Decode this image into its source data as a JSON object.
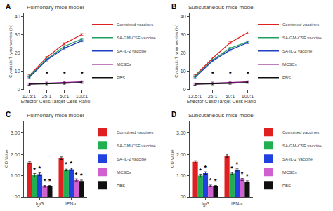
{
  "chart_data": [
    {
      "type": "line",
      "title": "Pulmonary mice model",
      "xlabel": "Effector Cells/Target Cells Ratio",
      "ylabel": "Cytotoxic T lymphocytes (%)",
      "categories": [
        "12.5:1",
        "25:1",
        "50:1",
        "100:1"
      ],
      "ylim": [
        0,
        42
      ],
      "yticks": [
        0,
        10,
        20,
        30,
        40
      ],
      "grid": false,
      "legend": "right",
      "series": [
        {
          "name": "Combined vaccines",
          "color": "#e02020",
          "values": [
            7.5,
            17.5,
            25.0,
            30.0
          ],
          "yerr": [
            0.5,
            0.5,
            0.5,
            0.5
          ]
        },
        {
          "name": "SA-GM-CSF vaccine",
          "color": "#20a060",
          "values": [
            7.0,
            16.5,
            23.5,
            27.5
          ],
          "yerr": [
            0.5,
            0.5,
            0.5,
            0.5
          ]
        },
        {
          "name": "SA-IL-2 vaccine",
          "color": "#2040c0",
          "values": [
            6.5,
            16.0,
            22.5,
            26.5
          ],
          "yerr": [
            0.5,
            0.5,
            0.5,
            0.5
          ]
        },
        {
          "name": "MCSCs",
          "color": "#800080",
          "values": [
            3.0,
            3.5,
            3.8,
            4.2
          ],
          "yerr": [
            0.5,
            0.5,
            0.5,
            0.5
          ]
        },
        {
          "name": "PBS",
          "color": "#101010",
          "values": [
            2.8,
            3.0,
            3.3,
            3.8
          ],
          "yerr": [
            0.5,
            0.5,
            0.5,
            0.5
          ]
        }
      ],
      "annotations": [
        {
          "text": "A"
        },
        {
          "text": "*",
          "x": "25:1",
          "y": 6.0
        },
        {
          "text": "*",
          "x": "50:1",
          "y": 6.0
        },
        {
          "text": "*",
          "x": "100:1",
          "y": 6.0
        }
      ]
    },
    {
      "type": "line",
      "title": "Subcutaneous mice model",
      "xlabel": "Effector Cells/Target Cells Ratio",
      "ylabel": "Cytotoxic T lymphocytes (%)",
      "categories": [
        "12.5:1",
        "25:1",
        "50:1",
        "100:1"
      ],
      "ylim": [
        0,
        42
      ],
      "yticks": [
        0,
        10,
        20,
        30,
        40
      ],
      "grid": false,
      "legend": "right",
      "series": [
        {
          "name": "Combined vaccines",
          "color": "#e02020",
          "values": [
            7.5,
            17.0,
            25.5,
            31.0
          ],
          "yerr": [
            0.5,
            0.5,
            0.5,
            0.5
          ]
        },
        {
          "name": "SA-GM-CSF vaccine",
          "color": "#20a060",
          "values": [
            7.0,
            16.0,
            22.5,
            26.0
          ],
          "yerr": [
            0.5,
            0.5,
            0.5,
            0.5
          ]
        },
        {
          "name": "SA-IL-2 vaccine",
          "color": "#2040c0",
          "values": [
            6.5,
            15.5,
            21.5,
            25.5
          ],
          "yerr": [
            0.5,
            0.5,
            0.5,
            0.5
          ]
        },
        {
          "name": "MCSCs",
          "color": "#800080",
          "values": [
            3.0,
            3.5,
            3.8,
            4.2
          ],
          "yerr": [
            0.5,
            0.5,
            0.5,
            0.5
          ]
        },
        {
          "name": "PBS",
          "color": "#101010",
          "values": [
            2.8,
            3.0,
            3.3,
            3.8
          ],
          "yerr": [
            0.5,
            0.5,
            0.5,
            0.5
          ]
        }
      ],
      "annotations": [
        {
          "text": "B"
        },
        {
          "text": "*",
          "x": "25:1",
          "y": 6.0
        },
        {
          "text": "*",
          "x": "50:1",
          "y": 6.0
        },
        {
          "text": "*",
          "x": "100:1",
          "y": 6.0
        }
      ]
    },
    {
      "type": "bar",
      "title": "Pulmonary mice model",
      "ylabel": "OD Value",
      "categories": [
        "IgG",
        "IFN-c"
      ],
      "ylim": [
        0,
        3.6
      ],
      "yticks": [
        {
          "value": 0,
          "label": ".00"
        },
        {
          "value": 1,
          "label": "1.00"
        },
        {
          "value": 2,
          "label": "2.00"
        },
        {
          "value": 3,
          "label": "3.00"
        }
      ],
      "grid": false,
      "legend": "right",
      "series": [
        {
          "name": "Combined vaccines",
          "color": "#e02020",
          "values": [
            1.62,
            1.82
          ],
          "yerr": [
            0.05,
            0.06
          ]
        },
        {
          "name": "SA-GM-CSF vaccine",
          "color": "#20b050",
          "values": [
            1.02,
            1.27
          ],
          "yerr": [
            0.08,
            0.04
          ]
        },
        {
          "name": "SA-IL-2 vaccine",
          "color": "#2040e0",
          "values": [
            1.07,
            1.3
          ],
          "yerr": [
            0.06,
            0.05
          ]
        },
        {
          "name": "MCSCs",
          "color": "#d060d0",
          "values": [
            0.5,
            0.8
          ],
          "yerr": [
            0.04,
            0.05
          ]
        },
        {
          "name": "PBS",
          "color": "#101010",
          "values": [
            0.5,
            0.75
          ],
          "yerr": [
            0.04,
            0.04
          ]
        }
      ],
      "annotations": [
        {
          "text": "C"
        },
        {
          "text": "*",
          "series": "SA-GM-CSF vaccine",
          "category": "IgG"
        },
        {
          "text": "*",
          "series": "SA-IL-2 vaccine",
          "category": "IgG"
        },
        {
          "text": "*",
          "series": "MCSCs",
          "category": "IgG"
        },
        {
          "text": "*",
          "series": "PBS",
          "category": "IgG"
        },
        {
          "text": "*",
          "series": "SA-GM-CSF vaccine",
          "category": "IFN-c"
        },
        {
          "text": "*",
          "series": "SA-IL-2 vaccine",
          "category": "IFN-c"
        },
        {
          "text": "*",
          "series": "MCSCs",
          "category": "IFN-c"
        },
        {
          "text": "*",
          "series": "PBS",
          "category": "IFN-c"
        }
      ]
    },
    {
      "type": "bar",
      "title": "Subcutaneous mice model",
      "ylabel": "OD Value",
      "categories": [
        "IgG",
        "IFN-c"
      ],
      "ylim": [
        0,
        3.6
      ],
      "yticks": [
        {
          "value": 0,
          "label": ".00"
        },
        {
          "value": 1,
          "label": "1.00"
        },
        {
          "value": 2,
          "label": "2.00"
        },
        {
          "value": 3,
          "label": "3.00"
        }
      ],
      "grid": false,
      "legend": "right",
      "series": [
        {
          "name": "Combined vaccines",
          "color": "#e02020",
          "values": [
            1.65,
            1.92
          ],
          "yerr": [
            0.05,
            0.06
          ]
        },
        {
          "name": "SA-GM-CSF vaccine",
          "color": "#20b050",
          "values": [
            1.0,
            1.1
          ],
          "yerr": [
            0.07,
            0.05
          ]
        },
        {
          "name": "SA-IL-2 Vaccine",
          "color": "#2040e0",
          "values": [
            1.12,
            1.27
          ],
          "yerr": [
            0.06,
            0.05
          ]
        },
        {
          "name": "MCSCs",
          "color": "#d060d0",
          "values": [
            0.52,
            0.82
          ],
          "yerr": [
            0.04,
            0.05
          ]
        },
        {
          "name": "PBS",
          "color": "#101010",
          "values": [
            0.5,
            0.72
          ],
          "yerr": [
            0.04,
            0.04
          ]
        }
      ],
      "annotations": [
        {
          "text": "D"
        },
        {
          "text": "*",
          "series": "SA-GM-CSF vaccine",
          "category": "IgG"
        },
        {
          "text": "*",
          "series": "SA-IL-2 Vaccine",
          "category": "IgG"
        },
        {
          "text": "*",
          "series": "MCSCs",
          "category": "IgG"
        },
        {
          "text": "*",
          "series": "PBS",
          "category": "IgG"
        },
        {
          "text": "*",
          "series": "SA-GM-CSF vaccine",
          "category": "IFN-c"
        },
        {
          "text": "*",
          "series": "SA-IL-2 Vaccine",
          "category": "IFN-c"
        },
        {
          "text": "*",
          "series": "MCSCs",
          "category": "IFN-c"
        },
        {
          "text": "*",
          "series": "PBS",
          "category": "IFN-c"
        }
      ]
    }
  ]
}
